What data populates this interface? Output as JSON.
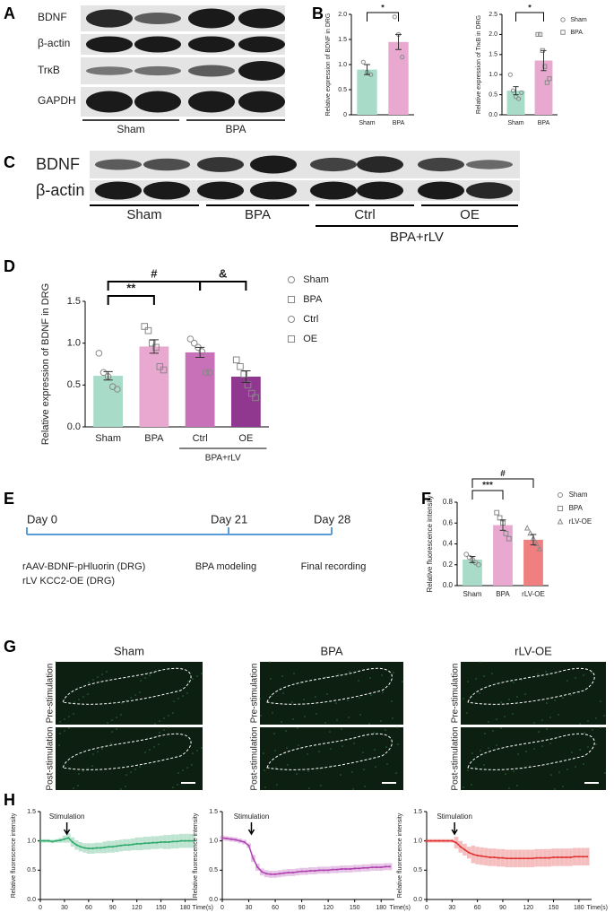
{
  "panel_labels": [
    "A",
    "B",
    "C",
    "D",
    "E",
    "F",
    "G",
    "H"
  ],
  "blot_a": {
    "rows": [
      "BDNF",
      "β-actin",
      "TrκB",
      "GAPDH"
    ],
    "groups": [
      "Sham",
      "BPA"
    ]
  },
  "blot_c": {
    "rows": [
      "BDNF",
      "β-actin"
    ],
    "groups": [
      "Sham",
      "BPA",
      "Ctrl",
      "OE"
    ],
    "supergroup": "BPA+rLV"
  },
  "timeline": {
    "days": [
      "Day 0",
      "Day 21",
      "Day 28"
    ],
    "notes": [
      "rAAV-BDNF-pHluorin (DRG)",
      "rLV KCC2-OE (DRG)",
      "BPA modeling",
      "Final recording"
    ]
  },
  "images": {
    "titles": [
      "Sham",
      "BPA",
      "rLV-OE"
    ],
    "rows": [
      "Pre-stimulation",
      "Post-stimulation"
    ]
  },
  "chart_data": [
    {
      "type": "bar",
      "ylabel": "Relative expression of BDNF in DRG",
      "categories": [
        "Sham",
        "BPA"
      ],
      "values": [
        0.9,
        1.45
      ],
      "errors": [
        0.1,
        0.15
      ],
      "colors": [
        "#a8dcc8",
        "#e8a8d0"
      ],
      "points": [
        [
          1.05,
          0.85,
          0.8
        ],
        [
          1.95,
          1.6,
          1.15
        ]
      ],
      "markers": [
        "circle",
        "circle"
      ],
      "ylim": [
        0,
        2
      ],
      "yticks": [
        0,
        0.5,
        {
          "value": 1,
          "label": "1.0"
        },
        1.5,
        {
          "value": 2,
          "label": "2.0"
        }
      ],
      "annotations": [
        "*"
      ]
    },
    {
      "type": "bar",
      "ylabel": "Relative expression of TrκB in DRG",
      "categories": [
        "Sham",
        "BPA"
      ],
      "values": [
        0.6,
        1.35
      ],
      "errors": [
        0.1,
        0.25
      ],
      "colors": [
        "#a8dcc8",
        "#e8a8d0"
      ],
      "points": [
        [
          1.0,
          0.6,
          0.45,
          0.4,
          0.55
        ],
        [
          2.0,
          2.0,
          1.6,
          1.2,
          0.8,
          0.9
        ]
      ],
      "markers": [
        "circle",
        "square"
      ],
      "legend": [
        "Sham",
        "BPA"
      ],
      "ylim": [
        0,
        2.5
      ],
      "yticks": [
        {
          "value": 0,
          "label": "0.0"
        },
        0.5,
        {
          "value": 1,
          "label": "1.0"
        },
        1.5,
        {
          "value": 2,
          "label": "2.0"
        },
        2.5
      ],
      "annotations": [
        "*"
      ]
    },
    {
      "type": "bar",
      "ylabel": "Relative expression of BDNF in DRG",
      "categories": [
        "Sham",
        "BPA",
        "Ctrl",
        "OE"
      ],
      "values": [
        0.61,
        0.96,
        0.89,
        0.6
      ],
      "errors": [
        0.05,
        0.08,
        0.06,
        0.07
      ],
      "colors": [
        "#a8dcc8",
        "#e8a8d0",
        "#c870b8",
        "#903890"
      ],
      "points": [
        [
          0.88,
          0.65,
          0.6,
          0.48,
          0.45
        ],
        [
          1.2,
          1.15,
          1.0,
          0.95,
          0.72,
          0.68
        ],
        [
          1.05,
          1.0,
          0.95,
          0.9,
          0.65,
          0.65
        ],
        [
          0.8,
          0.72,
          0.63,
          0.5,
          0.4,
          0.35
        ]
      ],
      "markers": [
        "circle",
        "square",
        "circle",
        "square"
      ],
      "legend": [
        "Sham",
        "BPA",
        "Ctrl",
        "OE"
      ],
      "group_label": "BPA+rLV",
      "ylim": [
        0,
        1.5
      ],
      "yticks": [
        {
          "value": 0,
          "label": "0.0"
        },
        0.5,
        {
          "value": 1,
          "label": "1.0"
        },
        1.5
      ],
      "annotations": [
        "#",
        "**",
        "&"
      ]
    },
    {
      "type": "bar",
      "ylabel": "Relative fluorescence intensity",
      "categories": [
        "Sham",
        "BPA",
        "rLV-OE"
      ],
      "values": [
        0.25,
        0.58,
        0.44
      ],
      "errors": [
        0.03,
        0.05,
        0.05
      ],
      "colors": [
        "#a8dcc8",
        "#e8a8d0",
        "#f08080"
      ],
      "points": [
        [
          0.3,
          0.27,
          0.25,
          0.22,
          0.2
        ],
        [
          0.7,
          0.65,
          0.6,
          0.5,
          0.45
        ],
        [
          0.55,
          0.5,
          0.45,
          0.4,
          0.35
        ]
      ],
      "markers": [
        "circle",
        "square",
        "triangle"
      ],
      "legend": [
        "Sham",
        "BPA",
        "rLV-OE"
      ],
      "ylim": [
        0,
        0.8
      ],
      "yticks": [
        {
          "value": 0,
          "label": "0.0"
        },
        0.2,
        0.4,
        0.6,
        0.8
      ],
      "annotations": [
        "#",
        "***"
      ]
    },
    {
      "type": "line",
      "ylabel": "Relative fluorescence intensity",
      "xlabel": "Time(s)",
      "color": "#2ca86a",
      "annotation": "Stimulation",
      "stimulus_x": 33,
      "x": [
        0,
        5,
        10,
        15,
        20,
        25,
        30,
        35,
        40,
        45,
        50,
        55,
        60,
        65,
        70,
        75,
        80,
        85,
        90,
        95,
        100,
        105,
        110,
        115,
        120,
        125,
        130,
        135,
        140,
        145,
        150,
        155,
        160,
        165,
        170,
        175,
        180,
        185,
        190
      ],
      "values": [
        1.0,
        1.0,
        1.0,
        0.99,
        1.0,
        1.01,
        1.03,
        1.05,
        0.98,
        0.93,
        0.9,
        0.88,
        0.87,
        0.87,
        0.88,
        0.88,
        0.89,
        0.9,
        0.9,
        0.91,
        0.92,
        0.93,
        0.93,
        0.94,
        0.95,
        0.95,
        0.96,
        0.96,
        0.97,
        0.97,
        0.98,
        0.98,
        0.98,
        0.99,
        0.99,
        1.0,
        1.0,
        1.0,
        1.0
      ],
      "errors": [
        0.03,
        0.03,
        0.03,
        0.03,
        0.03,
        0.04,
        0.06,
        0.08,
        0.08,
        0.08,
        0.08,
        0.08,
        0.09,
        0.09,
        0.09,
        0.09,
        0.1,
        0.1,
        0.1,
        0.1,
        0.1,
        0.1,
        0.1,
        0.1,
        0.11,
        0.11,
        0.11,
        0.11,
        0.11,
        0.11,
        0.11,
        0.12,
        0.12,
        0.12,
        0.12,
        0.12,
        0.12,
        0.12,
        0.12
      ],
      "xlim": [
        0,
        195
      ],
      "xticks": [
        0,
        30,
        60,
        90,
        120,
        150,
        180
      ],
      "ylim": [
        0,
        1.5
      ],
      "yticks": [
        {
          "value": 0,
          "label": "0.0"
        },
        0.5,
        {
          "value": 1,
          "label": "1.0"
        },
        1.5
      ]
    },
    {
      "type": "line",
      "ylabel": "Relative fluorescence intensity",
      "xlabel": "Time(s)",
      "color": "#b040b0",
      "annotation": "Stimulation",
      "stimulus_x": 33,
      "x": [
        0,
        5,
        10,
        15,
        20,
        25,
        30,
        35,
        40,
        45,
        50,
        55,
        60,
        65,
        70,
        75,
        80,
        85,
        90,
        95,
        100,
        105,
        110,
        115,
        120,
        125,
        130,
        135,
        140,
        145,
        150,
        155,
        160,
        165,
        170,
        175,
        180,
        185,
        190
      ],
      "values": [
        1.05,
        1.04,
        1.03,
        1.02,
        1.0,
        0.98,
        0.92,
        0.7,
        0.55,
        0.47,
        0.44,
        0.43,
        0.43,
        0.44,
        0.45,
        0.46,
        0.46,
        0.47,
        0.48,
        0.48,
        0.49,
        0.49,
        0.5,
        0.5,
        0.5,
        0.51,
        0.51,
        0.52,
        0.52,
        0.52,
        0.53,
        0.53,
        0.54,
        0.54,
        0.55,
        0.55,
        0.55,
        0.56,
        0.56
      ],
      "errors": [
        0.04,
        0.04,
        0.04,
        0.04,
        0.04,
        0.04,
        0.04,
        0.06,
        0.06,
        0.06,
        0.06,
        0.06,
        0.06,
        0.06,
        0.06,
        0.06,
        0.06,
        0.06,
        0.06,
        0.06,
        0.06,
        0.06,
        0.06,
        0.06,
        0.06,
        0.06,
        0.06,
        0.06,
        0.06,
        0.06,
        0.06,
        0.06,
        0.06,
        0.06,
        0.06,
        0.06,
        0.06,
        0.06,
        0.06
      ],
      "xlim": [
        0,
        195
      ],
      "xticks": [
        0,
        30,
        60,
        90,
        120,
        150,
        180
      ],
      "ylim": [
        0,
        1.5
      ],
      "yticks": [
        {
          "value": 0,
          "label": "0.0"
        },
        0.5,
        {
          "value": 1,
          "label": "1.0"
        },
        1.5
      ]
    },
    {
      "type": "line",
      "ylabel": "Relative fluorescence intensity",
      "xlabel": "Time(s)",
      "color": "#e03030",
      "annotation": "Stimulation",
      "stimulus_x": 33,
      "x": [
        0,
        5,
        10,
        15,
        20,
        25,
        30,
        35,
        40,
        45,
        50,
        55,
        60,
        65,
        70,
        75,
        80,
        85,
        90,
        95,
        100,
        105,
        110,
        115,
        120,
        125,
        130,
        135,
        140,
        145,
        150,
        155,
        160,
        165,
        170,
        175,
        180,
        185,
        190
      ],
      "values": [
        1.0,
        1.0,
        1.0,
        1.0,
        1.0,
        1.0,
        1.0,
        0.97,
        0.9,
        0.85,
        0.8,
        0.77,
        0.75,
        0.74,
        0.73,
        0.72,
        0.72,
        0.71,
        0.71,
        0.7,
        0.7,
        0.7,
        0.7,
        0.7,
        0.7,
        0.7,
        0.71,
        0.71,
        0.71,
        0.71,
        0.72,
        0.72,
        0.72,
        0.72,
        0.72,
        0.73,
        0.73,
        0.73,
        0.73
      ],
      "errors": [
        0.03,
        0.03,
        0.03,
        0.03,
        0.03,
        0.03,
        0.03,
        0.1,
        0.1,
        0.1,
        0.1,
        0.15,
        0.15,
        0.15,
        0.15,
        0.15,
        0.15,
        0.15,
        0.15,
        0.15,
        0.15,
        0.15,
        0.15,
        0.15,
        0.15,
        0.15,
        0.15,
        0.15,
        0.15,
        0.15,
        0.15,
        0.15,
        0.15,
        0.15,
        0.15,
        0.15,
        0.15,
        0.15,
        0.15
      ],
      "xlim": [
        0,
        195
      ],
      "xticks": [
        0,
        30,
        60,
        90,
        120,
        150,
        180
      ],
      "ylim": [
        0,
        1.5
      ],
      "yticks": [
        {
          "value": 0,
          "label": "0.0"
        },
        0.5,
        {
          "value": 1,
          "label": "1.0"
        },
        1.5
      ]
    }
  ]
}
